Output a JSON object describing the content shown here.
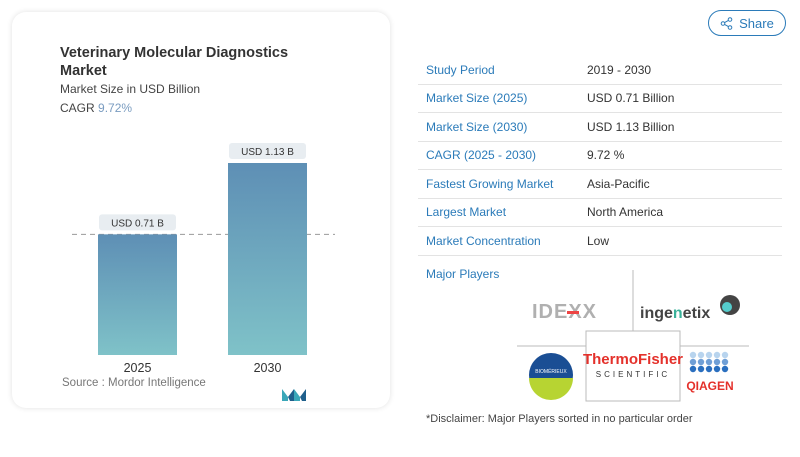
{
  "header": {
    "share_label": "Share",
    "share_icon": "share-icon"
  },
  "chart_card": {
    "title": "Veterinary Molecular Diagnostics Market",
    "subtitle": "Market Size in USD Billion",
    "cagr_label": "CAGR",
    "cagr_value": "9.72%",
    "source": "Source :  Mordor Intelligence"
  },
  "chart_data": {
    "type": "bar",
    "title": "Veterinary Molecular Diagnostics Market",
    "ylabel": "Market Size in USD Billion",
    "categories": [
      "2025",
      "2030"
    ],
    "values": [
      0.71,
      1.13
    ],
    "data_labels": [
      "USD 0.71 B",
      "USD 1.13 B"
    ],
    "reference_line": 0.71,
    "colors": {
      "bar_top": "#5e8fb5",
      "bar_bottom": "#7fc2c8"
    }
  },
  "table": {
    "rows": [
      {
        "label": "Study Period",
        "value": "2019 - 2030"
      },
      {
        "label": "Market Size (2025)",
        "value": "USD 0.71 Billion"
      },
      {
        "label": "Market Size (2030)",
        "value": "USD 1.13 Billion"
      },
      {
        "label": "CAGR (2025 - 2030)",
        "value": "9.72 %"
      },
      {
        "label": "Fastest Growing Market",
        "value": "Asia-Pacific"
      },
      {
        "label": "Largest Market",
        "value": "North America"
      },
      {
        "label": "Market Concentration",
        "value": "Low"
      }
    ]
  },
  "major_players": {
    "heading": "Major Players",
    "players": [
      "IDEXX",
      "ingenetix",
      "BIOMÉRIEUX",
      "ThermoFisher SCIENTIFIC",
      "QIAGEN"
    ],
    "disclaimer": "*Disclaimer: Major Players sorted in no particular order"
  }
}
